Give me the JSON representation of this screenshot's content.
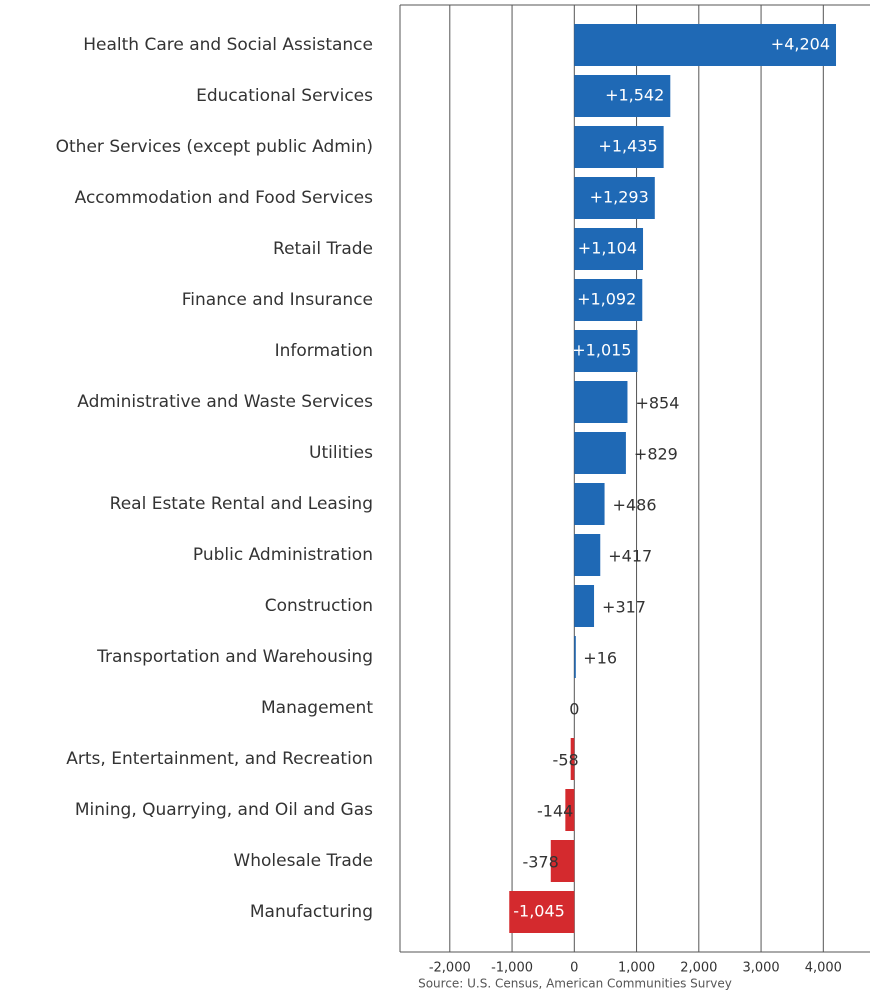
{
  "chart_data": {
    "type": "hbar",
    "categories": [
      "Health Care and Social Assistance",
      "Educational  Services",
      "Other Services  (except public Admin)",
      "Accommodation and Food Services",
      "Retail Trade",
      "Finance and Insurance",
      "Information",
      "Administrative and Waste Services",
      "Utilities",
      "Real Estate Rental and Leasing",
      "Public Administration",
      "Construction",
      "Transportation and Warehousing",
      "Management",
      "Arts, Entertainment, and Recreation",
      "Mining, Quarrying, and Oil and Gas",
      "Wholesale Trade",
      "Manufacturing"
    ],
    "values": [
      4204,
      1542,
      1435,
      1293,
      1104,
      1092,
      1015,
      854,
      829,
      486,
      417,
      317,
      16,
      0,
      -58,
      -144,
      -378,
      -1045
    ],
    "value_labels": [
      "+4,204",
      "+1,542",
      "+1,435",
      "+1,293",
      "+1,104",
      "+1,092",
      "+1,015",
      "+854",
      "+829",
      "+486",
      "+417",
      "+317",
      "+16",
      "0",
      "-58",
      "-144",
      "-378",
      "-1,045"
    ],
    "positive_color": "#1f69b5",
    "negative_color": "#d42a2e",
    "xlim": [
      -2800,
      4750
    ],
    "xticks": [
      {
        "value": -2000,
        "label": "-2,000"
      },
      {
        "value": -1000,
        "label": "-1,000"
      },
      0,
      {
        "value": 1000,
        "label": "1,000"
      },
      {
        "value": 2000,
        "label": "2,000"
      },
      {
        "value": 3000,
        "label": "3,000"
      },
      {
        "value": 4000,
        "label": "4,000"
      }
    ],
    "grid": true,
    "source": "Source: U.S. Census, American Communities Survey"
  }
}
